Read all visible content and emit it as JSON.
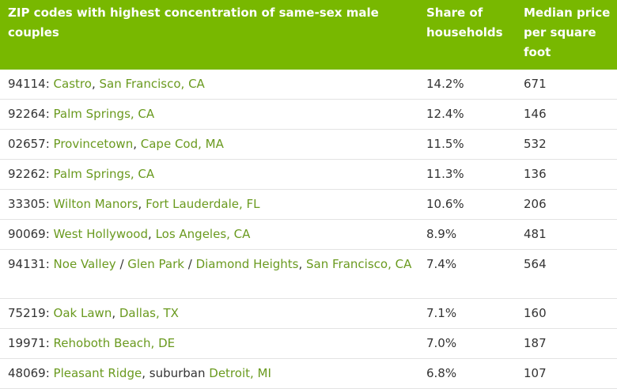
{
  "headers": {
    "location": "ZIP codes with highest concentration of same-sex male couples",
    "share": "Share of households",
    "price": "Median price per square foot"
  },
  "rows": [
    {
      "zip": "94114",
      "parts": [
        {
          "text": "Castro",
          "link": true
        },
        {
          "text": ", ",
          "link": false
        },
        {
          "text": "San Francisco, CA",
          "link": true
        }
      ],
      "share": "14.2%",
      "price": "671"
    },
    {
      "zip": "92264",
      "parts": [
        {
          "text": "Palm Springs, CA",
          "link": true
        }
      ],
      "share": "12.4%",
      "price": "146"
    },
    {
      "zip": "02657",
      "parts": [
        {
          "text": "Provincetown",
          "link": true
        },
        {
          "text": ", ",
          "link": false
        },
        {
          "text": "Cape Cod, MA",
          "link": true
        }
      ],
      "share": "11.5%",
      "price": "532"
    },
    {
      "zip": "92262",
      "parts": [
        {
          "text": "Palm Springs, CA",
          "link": true
        }
      ],
      "share": "11.3%",
      "price": "136"
    },
    {
      "zip": "33305",
      "parts": [
        {
          "text": "Wilton Manors",
          "link": true
        },
        {
          "text": ", ",
          "link": false
        },
        {
          "text": "Fort Lauderdale, FL",
          "link": true
        }
      ],
      "share": "10.6%",
      "price": "206"
    },
    {
      "zip": "90069",
      "parts": [
        {
          "text": "West Hollywood",
          "link": true
        },
        {
          "text": ", ",
          "link": false
        },
        {
          "text": "Los Angeles, CA",
          "link": true
        }
      ],
      "share": "8.9%",
      "price": "481"
    },
    {
      "zip": "94131",
      "parts": [
        {
          "text": "Noe Valley",
          "link": true
        },
        {
          "text": " / ",
          "link": false
        },
        {
          "text": "Glen Park",
          "link": true
        },
        {
          "text": " / ",
          "link": false
        },
        {
          "text": "Diamond Heights",
          "link": true
        },
        {
          "text": ", ",
          "link": false
        },
        {
          "text": "San Francisco, CA",
          "link": true
        }
      ],
      "share": "7.4%",
      "price": "564"
    },
    {
      "zip": "75219",
      "parts": [
        {
          "text": "Oak Lawn",
          "link": true
        },
        {
          "text": ", ",
          "link": false
        },
        {
          "text": "Dallas, TX",
          "link": true
        }
      ],
      "share": "7.1%",
      "price": "160"
    },
    {
      "zip": "19971",
      "parts": [
        {
          "text": "Rehoboth Beach, DE",
          "link": true
        }
      ],
      "share": "7.0%",
      "price": "187"
    },
    {
      "zip": "48069",
      "parts": [
        {
          "text": "Pleasant Ridge",
          "link": true
        },
        {
          "text": ", suburban ",
          "link": false
        },
        {
          "text": "Detroit, MI",
          "link": true
        }
      ],
      "share": "6.8%",
      "price": "107"
    }
  ],
  "colors": {
    "header_bg": "#78b800",
    "link": "#6a9a1f",
    "text": "#333333"
  }
}
